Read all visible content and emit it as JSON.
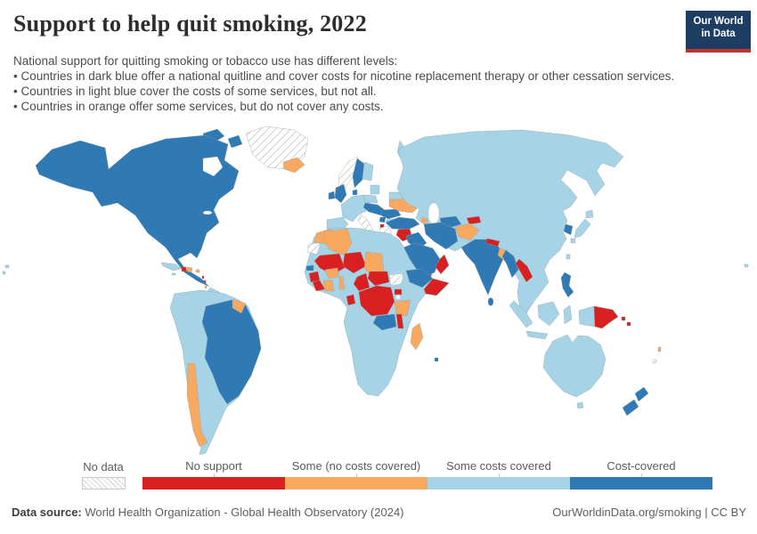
{
  "header": {
    "title": "Support to help quit smoking, 2022",
    "logo": {
      "line1": "Our World",
      "line2": "in Data"
    }
  },
  "subtitle": {
    "intro": "National support for quitting smoking or tobacco use has different levels:",
    "bullets": [
      "• Countries in dark blue offer a national quitline and cover costs for nicotine replacement therapy or other cessation services.",
      "• Countries in light blue cover the costs of some services, but not all.",
      "• Countries in orange offer some services, but do not cover any costs."
    ]
  },
  "legend": {
    "no_data": {
      "label": "No data"
    },
    "categories": [
      {
        "label": "No support",
        "color": "#d7201f"
      },
      {
        "label": "Some (no costs covered)",
        "color": "#f9a95f"
      },
      {
        "label": "Some costs covered",
        "color": "#a7d3e6"
      },
      {
        "label": "Cost-covered",
        "color": "#2f79b5"
      }
    ]
  },
  "footer": {
    "source_label": "Data source:",
    "source_text": " World Health Organization - Global Health Observatory (2024)",
    "link_text": "OurWorldinData.org/smoking | CC BY"
  },
  "chart_data": {
    "type": "choropleth",
    "title": "Support to help quit smoking, 2022",
    "year": 2022,
    "legend_position": "bottom",
    "categories": [
      "No support",
      "Some (no costs covered)",
      "Some costs covered",
      "Cost-covered"
    ],
    "category_colors": [
      "#d7201f",
      "#f9a95f",
      "#a7d3e6",
      "#2f79b5"
    ],
    "no_data_label": "No data",
    "countries_by_category": {
      "No support": [
        "Haiti",
        "Syria",
        "Yemen",
        "Oman",
        "Tajikistan",
        "Nepal",
        "Laos",
        "Papua New Guinea",
        "Solomon Islands",
        "Mali",
        "Niger",
        "Guinea",
        "Sierra Leone",
        "Liberia",
        "Cameroon",
        "Gabon",
        "Central African Republic",
        "Democratic Republic of Congo",
        "Uganda",
        "Somalia",
        "Malawi",
        "North Macedonia"
      ],
      "Some (no costs covered)": [
        "Iceland",
        "Ukraine",
        "Azerbaijan",
        "Morocco",
        "Algeria",
        "Chad",
        "Burkina Faso",
        "Cote d'Ivoire",
        "Benin",
        "Tanzania",
        "Madagascar",
        "Afghanistan",
        "Bangladesh",
        "Chile",
        "Suriname",
        "Nicaragua",
        "Dominican Republic",
        "Vanuatu"
      ],
      "Some costs covered": [
        "Russia",
        "China",
        "Mongolia",
        "Japan",
        "Kazakhstan",
        "Uzbekistan",
        "Pakistan",
        "Thailand",
        "Vietnam",
        "Cambodia",
        "Malaysia",
        "Indonesia",
        "Australia",
        "France",
        "Germany",
        "Spain",
        "Portugal",
        "Poland",
        "Finland",
        "Belarus",
        "Bulgaria",
        "Egypt",
        "Libya",
        "Tunisia",
        "Sudan",
        "Mauritania",
        "Nigeria",
        "Ghana",
        "Kenya",
        "Angola",
        "Mozambique",
        "Zimbabwe",
        "Namibia",
        "Botswana",
        "South Africa",
        "Argentina",
        "Peru",
        "Bolivia",
        "Colombia",
        "Venezuela",
        "Ecuador",
        "Paraguay",
        "Uruguay",
        "Cuba",
        "Guatemala",
        "Honduras",
        "Costa Rica",
        "Panama"
      ],
      "Cost-covered": [
        "United States",
        "Canada",
        "Mexico",
        "Brazil",
        "United Kingdom",
        "Ireland",
        "Sweden",
        "Denmark",
        "Czechia",
        "Austria",
        "Hungary",
        "Romania",
        "Serbia",
        "Turkey",
        "Iraq",
        "Iran",
        "Saudi Arabia",
        "Turkmenistan",
        "India",
        "Sri Lanka",
        "Myanmar",
        "South Korea",
        "Philippines",
        "New Zealand",
        "Senegal",
        "Ethiopia",
        "Zambia",
        "Mauritius"
      ],
      "No data": [
        "Greenland",
        "Norway",
        "Italy",
        "Greece",
        "Western Sahara",
        "South Sudan",
        "Fiji"
      ]
    }
  }
}
